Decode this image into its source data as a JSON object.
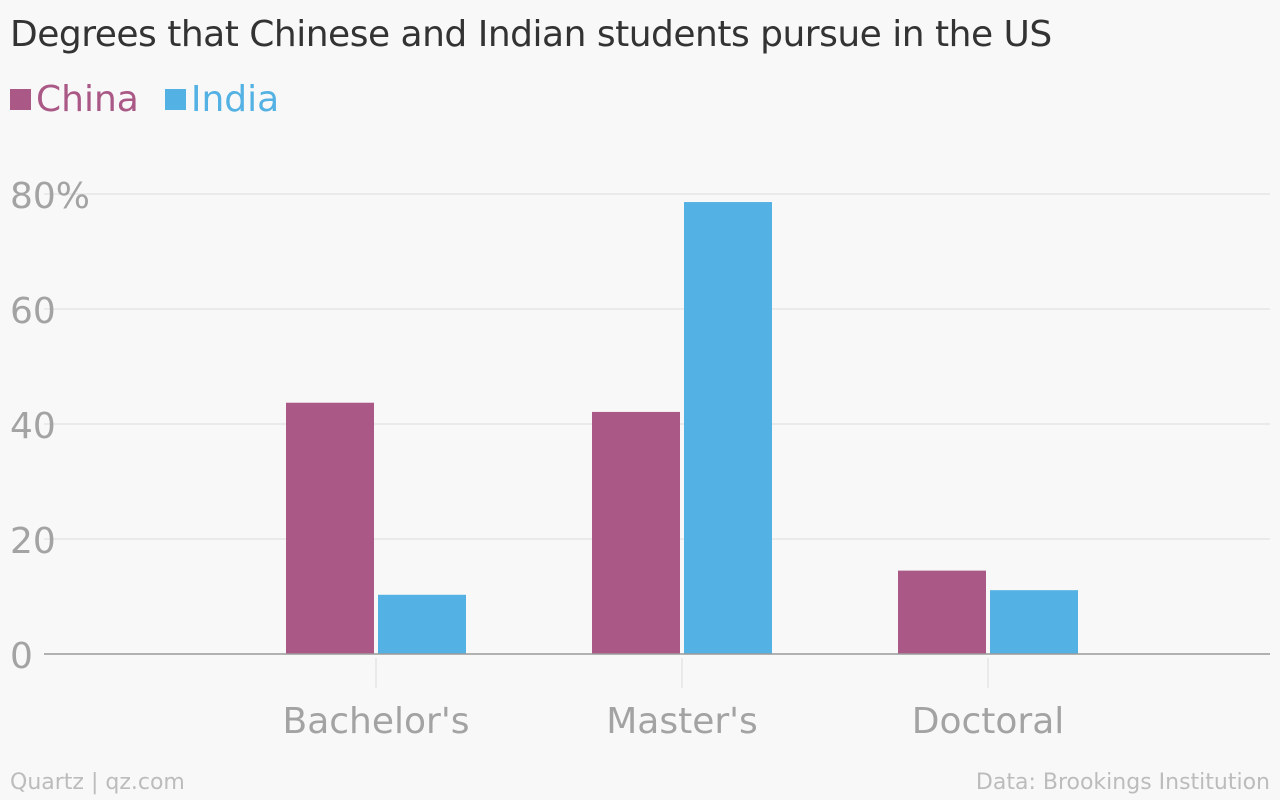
{
  "title": "Degrees that Chinese and Indian students pursue in the US",
  "footer": {
    "left": "Quartz | qz.com",
    "right": "Data: Brookings Institution"
  },
  "chart_data": {
    "type": "bar",
    "title": "Degrees that Chinese and Indian students pursue in the US",
    "categories": [
      "Bachelor's",
      "Master's",
      "Doctoral"
    ],
    "series": [
      {
        "name": "China",
        "color": "#aa5886",
        "values": [
          43.7,
          42.1,
          14.5
        ]
      },
      {
        "name": "India",
        "color": "#53b1e3",
        "values": [
          10.3,
          78.6,
          11.1
        ]
      }
    ],
    "y_ticks": [
      {
        "value": 0,
        "label": "0"
      },
      {
        "value": 20,
        "label": "20"
      },
      {
        "value": 40,
        "label": "40"
      },
      {
        "value": 60,
        "label": "60"
      },
      {
        "value": 80,
        "label": "80%"
      }
    ],
    "ylim": [
      0,
      80
    ],
    "xlabel": "",
    "ylabel": "",
    "grid": true,
    "legend_position": "top-left",
    "colors": {
      "background": "#f8f8f8",
      "gridline": "#e6e6e6",
      "axis": "#999999",
      "tick_label": "#a3a3a3",
      "title": "#333333",
      "footer": "#bcbcbc"
    }
  }
}
